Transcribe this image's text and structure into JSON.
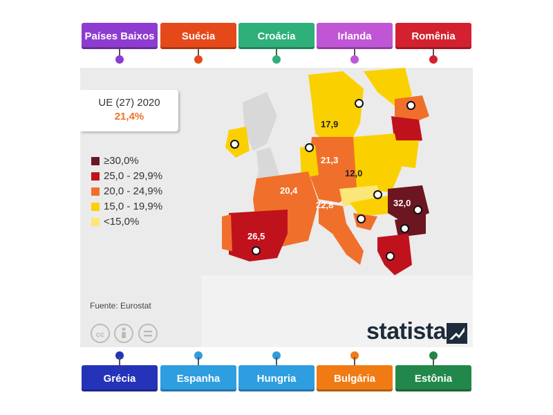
{
  "top_labels": [
    {
      "text": "Países Baixos",
      "color": "#8e3bd1"
    },
    {
      "text": "Suécia",
      "color": "#e5491a"
    },
    {
      "text": "Croácia",
      "color": "#2faf7a"
    },
    {
      "text": "Irlanda",
      "color": "#c056d6"
    },
    {
      "text": "Romênia",
      "color": "#d3212f"
    }
  ],
  "bottom_labels": [
    {
      "text": "Grécia",
      "color": "#2533b8"
    },
    {
      "text": "Espanha",
      "color": "#2e9ee0"
    },
    {
      "text": "Hungria",
      "color": "#2e9ee0"
    },
    {
      "text": "Bulgária",
      "color": "#f07b15"
    },
    {
      "text": "Estônia",
      "color": "#22874a"
    }
  ],
  "map": {
    "summary_title": "UE (27) 2020",
    "summary_value": "21,4%",
    "legend": [
      {
        "label": "≥30,0%",
        "color": "#6b1620"
      },
      {
        "label": "25,0 - 29,9%",
        "color": "#c0121d"
      },
      {
        "label": "20,0 - 24,9%",
        "color": "#f0702b"
      },
      {
        "label": "15,0 - 19,9%",
        "color": "#fbd000"
      },
      {
        "label": "<15,0%",
        "color": "#fbe678"
      }
    ],
    "country_values": [
      "17,9",
      "21,3",
      "12,0",
      "20,4",
      "22,8",
      "32,0",
      "26,5"
    ],
    "source": "Fuente: Eurostat",
    "brand": "statista"
  }
}
